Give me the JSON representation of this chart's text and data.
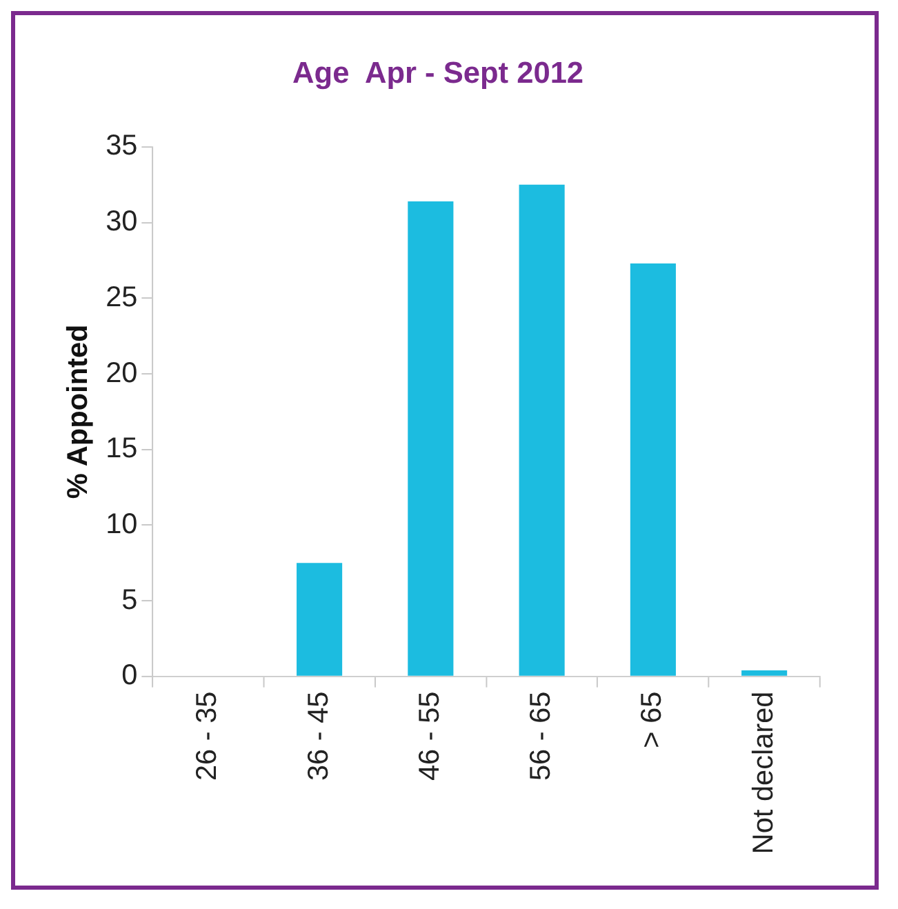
{
  "chart_data": {
    "type": "bar",
    "title": "Age  Apr - Sept 2012",
    "ylabel": "% Appointed",
    "categories": [
      "26 - 35",
      "36 - 45",
      "46 - 55",
      "56 - 65",
      "> 65",
      "Not declared"
    ],
    "values": [
      0,
      7.5,
      31.4,
      32.5,
      27.3,
      0.4
    ],
    "color": "#1cbce0",
    "ylim": [
      0,
      35
    ],
    "yticks": [
      0,
      5,
      10,
      15,
      20,
      25,
      30,
      35
    ],
    "grid": false,
    "legend": false
  }
}
